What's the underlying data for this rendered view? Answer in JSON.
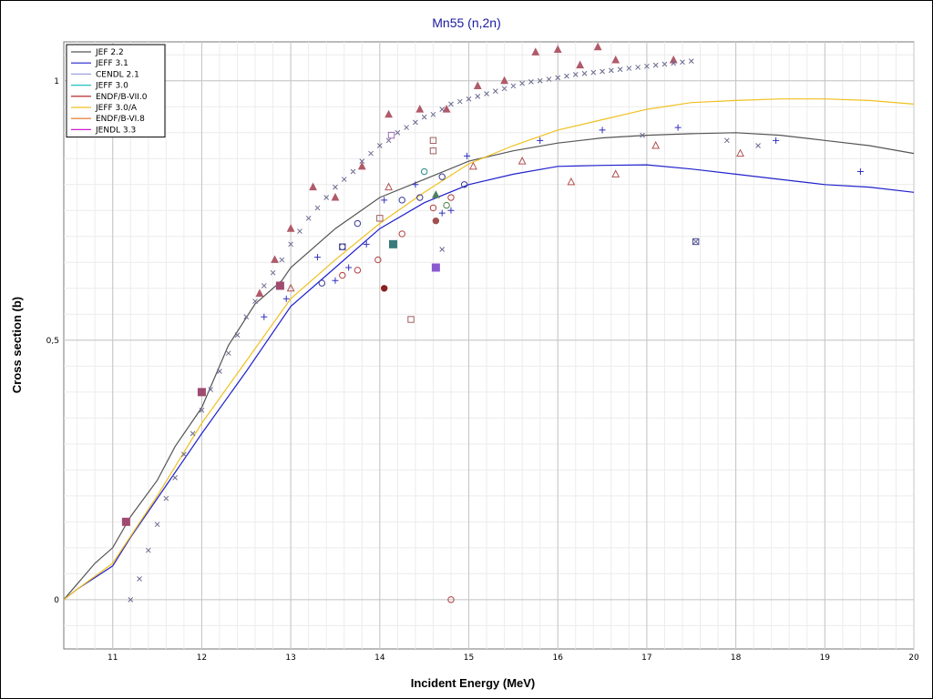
{
  "chart_data": {
    "type": "line",
    "title": "Mn55 (n,2n)",
    "xlabel": "Incident Energy (MeV)",
    "ylabel": "Cross section (b)",
    "xlim": [
      10.45,
      20.0
    ],
    "ylim": [
      -0.095,
      1.075
    ],
    "x_ticks": [
      11,
      12,
      13,
      14,
      15,
      16,
      17,
      18,
      19,
      20
    ],
    "x_tick_labels": [
      "11",
      "12",
      "13",
      "14",
      "15",
      "16",
      "17",
      "18",
      "19",
      "20"
    ],
    "y_ticks": [
      0,
      0.5,
      1
    ],
    "y_tick_labels": [
      "0",
      "0,5",
      "1"
    ],
    "grid": true,
    "legend_position": "top-left",
    "series": [
      {
        "name": "JEF 2.2",
        "color": "#555555",
        "x": [
          10.45,
          10.6,
          10.8,
          11.0,
          11.2,
          11.5,
          11.7,
          12.0,
          12.3,
          12.6,
          12.9,
          13.0,
          13.5,
          14.0,
          14.5,
          15.0,
          15.5,
          16.0,
          16.5,
          17.0,
          17.5,
          18.0,
          18.5,
          19.0,
          19.5,
          20.0
        ],
        "y": [
          0.0,
          0.03,
          0.07,
          0.1,
          0.16,
          0.23,
          0.295,
          0.37,
          0.49,
          0.57,
          0.615,
          0.64,
          0.715,
          0.775,
          0.81,
          0.845,
          0.865,
          0.88,
          0.89,
          0.895,
          0.898,
          0.9,
          0.895,
          0.885,
          0.875,
          0.86
        ]
      },
      {
        "name": "JEFF 3.1",
        "color": "#2020cc",
        "x": [
          10.45,
          10.6,
          11.0,
          11.2,
          11.6,
          12.0,
          12.5,
          13.0,
          13.5,
          14.0,
          14.5,
          15.0,
          15.5,
          16.0,
          16.5,
          17.0,
          17.5,
          18.0,
          18.5,
          19.0,
          19.5,
          20.0
        ],
        "y": [
          0.0,
          0.02,
          0.065,
          0.12,
          0.22,
          0.32,
          0.44,
          0.565,
          0.64,
          0.715,
          0.765,
          0.8,
          0.82,
          0.835,
          0.837,
          0.838,
          0.83,
          0.82,
          0.81,
          0.8,
          0.795,
          0.785
        ]
      },
      {
        "name": "CENDL 2.1",
        "color": "#a0a0e0",
        "x": [],
        "y": []
      },
      {
        "name": "JEFF 3.0",
        "color": "#20c0c0",
        "x": [],
        "y": []
      },
      {
        "name": "ENDF/B-VII.0",
        "color": "#b01010",
        "x": [],
        "y": []
      },
      {
        "name": "JEFF 3.0/A",
        "color": "#f0c020",
        "x": [
          10.45,
          10.6,
          11.0,
          11.5,
          12.0,
          12.5,
          13.0,
          13.5,
          14.0,
          14.5,
          15.0,
          15.5,
          16.0,
          16.5,
          17.0,
          17.5,
          18.0,
          18.5,
          19.0,
          19.5,
          20.0
        ],
        "y": [
          0.0,
          0.02,
          0.07,
          0.2,
          0.34,
          0.46,
          0.58,
          0.655,
          0.725,
          0.785,
          0.84,
          0.875,
          0.905,
          0.925,
          0.945,
          0.958,
          0.962,
          0.965,
          0.965,
          0.962,
          0.955
        ]
      },
      {
        "name": "ENDF/B-VI.8",
        "color": "#e07020",
        "x": [],
        "y": []
      },
      {
        "name": "JENDL 3.3",
        "color": "#d020d0",
        "x": [],
        "y": []
      }
    ],
    "markers": [
      {
        "shape": "filled-triangle",
        "color": "#b05a6a",
        "points": [
          [
            12.65,
            0.59
          ],
          [
            12.82,
            0.655
          ],
          [
            13.0,
            0.715
          ],
          [
            13.25,
            0.795
          ],
          [
            13.5,
            0.775
          ],
          [
            13.8,
            0.835
          ],
          [
            14.1,
            0.935
          ],
          [
            14.45,
            0.945
          ],
          [
            14.75,
            0.945
          ],
          [
            15.1,
            0.99
          ],
          [
            15.4,
            1.0
          ],
          [
            15.75,
            1.055
          ],
          [
            16.0,
            1.06
          ],
          [
            16.25,
            1.03
          ],
          [
            16.45,
            1.065
          ],
          [
            16.65,
            1.04
          ],
          [
            17.3,
            1.04
          ]
        ]
      },
      {
        "shape": "x",
        "color": "#6a6a90",
        "points": [
          [
            11.2,
            0.0
          ],
          [
            11.3,
            0.04
          ],
          [
            11.4,
            0.095
          ],
          [
            11.5,
            0.145
          ],
          [
            11.6,
            0.195
          ],
          [
            11.7,
            0.235
          ],
          [
            11.8,
            0.28
          ],
          [
            11.9,
            0.32
          ],
          [
            12.0,
            0.365
          ],
          [
            12.1,
            0.405
          ],
          [
            12.2,
            0.44
          ],
          [
            12.3,
            0.475
          ],
          [
            12.4,
            0.51
          ],
          [
            12.5,
            0.545
          ],
          [
            12.6,
            0.575
          ],
          [
            12.7,
            0.605
          ],
          [
            12.8,
            0.63
          ],
          [
            12.9,
            0.655
          ],
          [
            13.0,
            0.685
          ],
          [
            13.1,
            0.71
          ],
          [
            13.2,
            0.735
          ],
          [
            13.3,
            0.755
          ],
          [
            13.4,
            0.775
          ],
          [
            13.5,
            0.795
          ],
          [
            13.6,
            0.81
          ],
          [
            13.7,
            0.825
          ],
          [
            13.8,
            0.845
          ],
          [
            13.9,
            0.86
          ],
          [
            14.0,
            0.875
          ],
          [
            14.1,
            0.885
          ],
          [
            14.2,
            0.9
          ],
          [
            14.3,
            0.91
          ],
          [
            14.4,
            0.92
          ],
          [
            14.5,
            0.93
          ],
          [
            14.6,
            0.935
          ],
          [
            14.7,
            0.945
          ],
          [
            14.8,
            0.955
          ],
          [
            14.9,
            0.96
          ],
          [
            15.0,
            0.965
          ],
          [
            15.1,
            0.97
          ],
          [
            15.2,
            0.975
          ],
          [
            15.3,
            0.98
          ],
          [
            15.4,
            0.985
          ],
          [
            15.5,
            0.99
          ],
          [
            15.6,
            0.995
          ],
          [
            15.7,
            0.998
          ],
          [
            15.8,
            1.0
          ],
          [
            15.9,
            1.003
          ],
          [
            16.0,
            1.006
          ],
          [
            16.1,
            1.009
          ],
          [
            16.2,
            1.012
          ],
          [
            16.3,
            1.014
          ],
          [
            16.4,
            1.016
          ],
          [
            16.5,
            1.018
          ],
          [
            16.6,
            1.02
          ],
          [
            16.7,
            1.022
          ],
          [
            16.8,
            1.024
          ],
          [
            16.9,
            1.026
          ],
          [
            17.0,
            1.028
          ],
          [
            17.1,
            1.03
          ],
          [
            17.2,
            1.032
          ],
          [
            17.3,
            1.034
          ],
          [
            17.4,
            1.036
          ],
          [
            17.5,
            1.038
          ],
          [
            16.95,
            0.895
          ],
          [
            17.9,
            0.885
          ],
          [
            18.25,
            0.875
          ],
          [
            14.7,
            0.675
          ],
          [
            17.55,
            0.69
          ]
        ]
      },
      {
        "shape": "plus",
        "color": "#3030c0",
        "points": [
          [
            12.7,
            0.545
          ],
          [
            12.95,
            0.58
          ],
          [
            13.3,
            0.66
          ],
          [
            13.5,
            0.615
          ],
          [
            13.65,
            0.64
          ],
          [
            13.85,
            0.685
          ],
          [
            14.05,
            0.77
          ],
          [
            14.4,
            0.8
          ],
          [
            14.7,
            0.745
          ],
          [
            14.8,
            0.75
          ],
          [
            14.98,
            0.855
          ],
          [
            15.8,
            0.885
          ],
          [
            16.5,
            0.905
          ],
          [
            17.35,
            0.91
          ],
          [
            18.45,
            0.885
          ],
          [
            19.4,
            0.825
          ]
        ]
      },
      {
        "shape": "open-circle",
        "color": "#3a3a9a",
        "points": [
          [
            13.35,
            0.61
          ],
          [
            13.75,
            0.725
          ],
          [
            13.58,
            0.68
          ],
          [
            14.25,
            0.77
          ],
          [
            14.45,
            0.775
          ],
          [
            14.7,
            0.815
          ],
          [
            14.95,
            0.8
          ]
        ]
      },
      {
        "shape": "open-circle",
        "color": "#b04040",
        "points": [
          [
            13.58,
            0.625
          ],
          [
            13.75,
            0.635
          ],
          [
            13.98,
            0.655
          ],
          [
            14.25,
            0.705
          ],
          [
            14.6,
            0.755
          ],
          [
            14.8,
            0.775
          ],
          [
            14.8,
            0.0
          ]
        ]
      },
      {
        "shape": "open-triangle",
        "color": "#b05050",
        "points": [
          [
            13.0,
            0.6
          ],
          [
            14.1,
            0.795
          ],
          [
            15.05,
            0.835
          ],
          [
            15.6,
            0.845
          ],
          [
            16.15,
            0.805
          ],
          [
            16.65,
            0.82
          ],
          [
            17.1,
            0.875
          ],
          [
            18.05,
            0.86
          ]
        ]
      },
      {
        "shape": "open-circle",
        "color": "#508040",
        "points": [
          [
            14.75,
            0.76
          ]
        ]
      },
      {
        "shape": "open-square",
        "color": "#a06060",
        "points": [
          [
            14.6,
            0.885
          ],
          [
            14.6,
            0.865
          ],
          [
            14.0,
            0.735
          ],
          [
            14.35,
            0.54
          ]
        ]
      },
      {
        "shape": "open-square",
        "color": "#9a6aba",
        "points": [
          [
            14.13,
            0.895
          ]
        ]
      },
      {
        "shape": "open-square",
        "color": "#4a4a9a",
        "points": [
          [
            13.58,
            0.68
          ],
          [
            17.55,
            0.69
          ]
        ]
      },
      {
        "shape": "filled-square",
        "color": "#a04a70",
        "points": [
          [
            11.15,
            0.15
          ],
          [
            12.0,
            0.4
          ],
          [
            12.88,
            0.605
          ]
        ]
      },
      {
        "shape": "filled-square",
        "color": "#3a7a7a",
        "points": [
          [
            14.15,
            0.685
          ]
        ]
      },
      {
        "shape": "filled-square",
        "color": "#8a5ad0",
        "points": [
          [
            14.63,
            0.64
          ]
        ]
      },
      {
        "shape": "filled-circle",
        "color": "#8a2020",
        "points": [
          [
            14.05,
            0.6
          ]
        ]
      },
      {
        "shape": "filled-circle",
        "color": "#a05050",
        "points": [
          [
            14.63,
            0.73
          ]
        ]
      },
      {
        "shape": "open-circle",
        "color": "#2a8a8a",
        "points": [
          [
            14.5,
            0.825
          ]
        ]
      },
      {
        "shape": "filled-triangle",
        "color": "#508060",
        "points": [
          [
            14.63,
            0.78
          ]
        ]
      }
    ]
  }
}
